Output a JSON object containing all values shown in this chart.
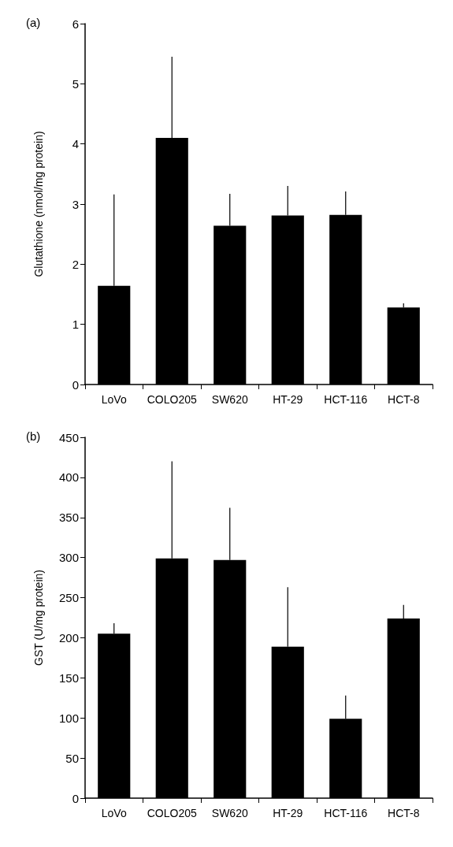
{
  "chart_data": [
    {
      "type": "bar",
      "title": "(a)",
      "ylabel": "Glutathione (nmol/mg protein)",
      "categories": [
        "LoVo",
        "COLO205",
        "SW620",
        "HT-29",
        "HCT-116",
        "HCT-8"
      ],
      "values": [
        1.64,
        4.1,
        2.64,
        2.81,
        2.82,
        1.28
      ],
      "color": "#000000",
      "errors": [
        [
          1.64,
          3.16
        ],
        [
          4.1,
          5.45
        ],
        [
          2.64,
          3.17
        ],
        [
          2.81,
          3.3
        ],
        [
          2.82,
          3.21
        ],
        [
          1.28,
          1.35
        ]
      ],
      "ylim": [
        0,
        6
      ],
      "yticks": [
        0,
        1,
        2,
        3,
        4,
        5,
        6
      ]
    },
    {
      "type": "bar",
      "title": "(b)",
      "ylabel": "GST (U/mg protein)",
      "categories": [
        "LoVo",
        "COLO205",
        "SW620",
        "HT-29",
        "HCT-116",
        "HCT-8"
      ],
      "values": [
        205,
        299,
        297,
        189,
        99,
        224
      ],
      "color": "#000000",
      "errors": [
        [
          205,
          218
        ],
        [
          299,
          420
        ],
        [
          297,
          362
        ],
        [
          189,
          263
        ],
        [
          99,
          128
        ],
        [
          224,
          241
        ]
      ],
      "ylim": [
        0,
        450
      ],
      "yticks": [
        0,
        50,
        100,
        150,
        200,
        250,
        300,
        350,
        400,
        450
      ]
    }
  ]
}
